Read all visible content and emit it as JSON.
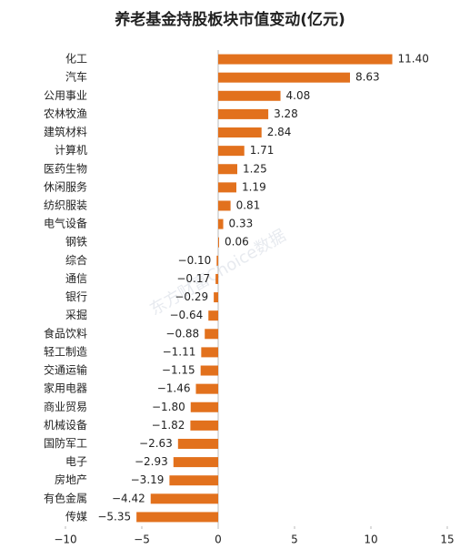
{
  "chart_data": {
    "type": "barh",
    "title": "养老基金持股板块市值变动(亿元)",
    "watermark": "东方财富Choice数据",
    "categories": [
      "化工",
      "汽车",
      "公用事业",
      "农林牧渔",
      "建筑材料",
      "计算机",
      "医药生物",
      "休闲服务",
      "纺织服装",
      "电气设备",
      "钢铁",
      "综合",
      "通信",
      "银行",
      "采掘",
      "食品饮料",
      "轻工制造",
      "交通运输",
      "家用电器",
      "商业贸易",
      "机械设备",
      "国防军工",
      "电子",
      "房地产",
      "有色金属",
      "传媒"
    ],
    "values": [
      11.4,
      8.63,
      4.08,
      3.28,
      2.84,
      1.71,
      1.25,
      1.19,
      0.81,
      0.33,
      0.06,
      -0.1,
      -0.17,
      -0.29,
      -0.64,
      -0.88,
      -1.11,
      -1.15,
      -1.46,
      -1.8,
      -1.82,
      -2.63,
      -2.93,
      -3.19,
      -4.42,
      -5.35
    ],
    "value_labels": [
      "11.40",
      "8.63",
      "4.08",
      "3.28",
      "2.84",
      "1.71",
      "1.25",
      "1.19",
      "0.81",
      "0.33",
      "0.06",
      "−0.10",
      "−0.17",
      "−0.29",
      "−0.64",
      "−0.88",
      "−1.11",
      "−1.15",
      "−1.46",
      "−1.80",
      "−1.82",
      "−2.63",
      "−2.93",
      "−3.19",
      "−4.42",
      "−5.35"
    ],
    "color": "#e2711d",
    "xlim": [
      -10,
      15
    ],
    "xticks": [
      {
        "value": -10,
        "label": "−10"
      },
      {
        "value": -5,
        "label": "−5"
      },
      0,
      5,
      10,
      15
    ]
  }
}
